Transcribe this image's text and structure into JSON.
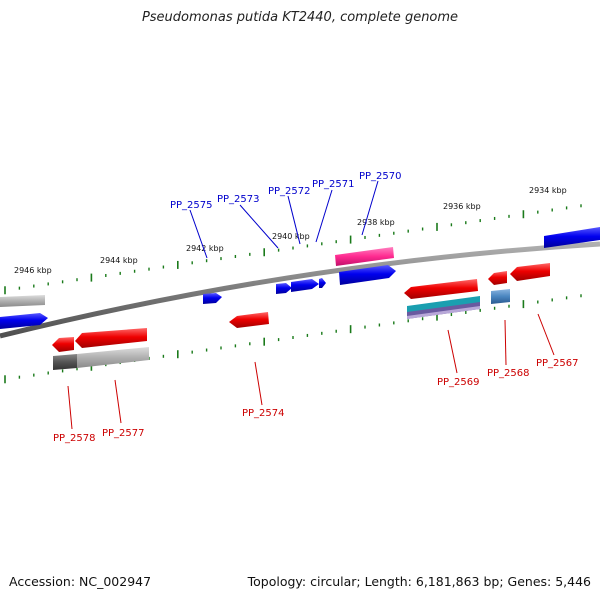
{
  "title": "Pseudomonas putida KT2440, complete genome",
  "footer": {
    "accession": "Accession: NC_002947",
    "summary": "Topology: circular; Length: 6,181,863 bp; Genes: 5,446"
  },
  "colors": {
    "backbone": "#808080",
    "forward_gene": "#0000ee",
    "reverse_gene": "#ee0000",
    "pink_feature": "#ff3399",
    "grey_feature": "#aaaaaa",
    "tick": "#1a7a1a",
    "top_label": "#0000cc",
    "bottom_label": "#cc0000"
  },
  "scale_labels": [
    "2946 kbp",
    "2944 kbp",
    "2942 kbp",
    "2940 kbp",
    "2938 kbp",
    "2936 kbp",
    "2934 kbp"
  ],
  "gene_labels_top": [
    "PP_2575",
    "PP_2573",
    "PP_2572",
    "PP_2571",
    "PP_2570"
  ],
  "gene_labels_bottom": [
    "PP_2578",
    "PP_2577",
    "PP_2574",
    "PP_2569",
    "PP_2568",
    "PP_2567"
  ]
}
